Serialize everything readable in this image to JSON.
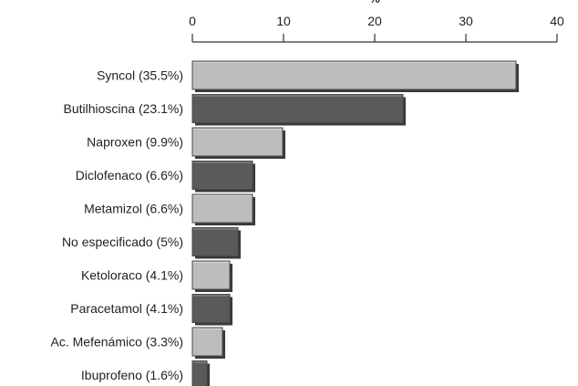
{
  "chart_data": {
    "type": "bar",
    "orientation": "horizontal",
    "categories": [
      "Syncol (35.5%)",
      "Butilhioscina (23.1%)",
      "Naproxen (9.9%)",
      "Diclofenaco (6.6%)",
      "Metamizol (6.6%)",
      "No especificado (5%)",
      "Ketoloraco (4.1%)",
      "Paracetamol (4.1%)",
      "Ac. Mefenámico (3.3%)",
      "Ibuprofeno (1.6%)"
    ],
    "values": [
      35.5,
      23.1,
      9.9,
      6.6,
      6.6,
      5,
      4.1,
      4.1,
      3.3,
      1.6
    ],
    "xlabel": "%",
    "ylabel": "",
    "xlim": [
      0,
      40
    ],
    "xticks": [
      0,
      10,
      20,
      30,
      40
    ],
    "axis_position": "top",
    "grid": false,
    "colors": {
      "light": "#bdbdbd",
      "dark": "#5a5a5a",
      "shadow": "#3a3a3a",
      "axis": "#333333"
    }
  }
}
